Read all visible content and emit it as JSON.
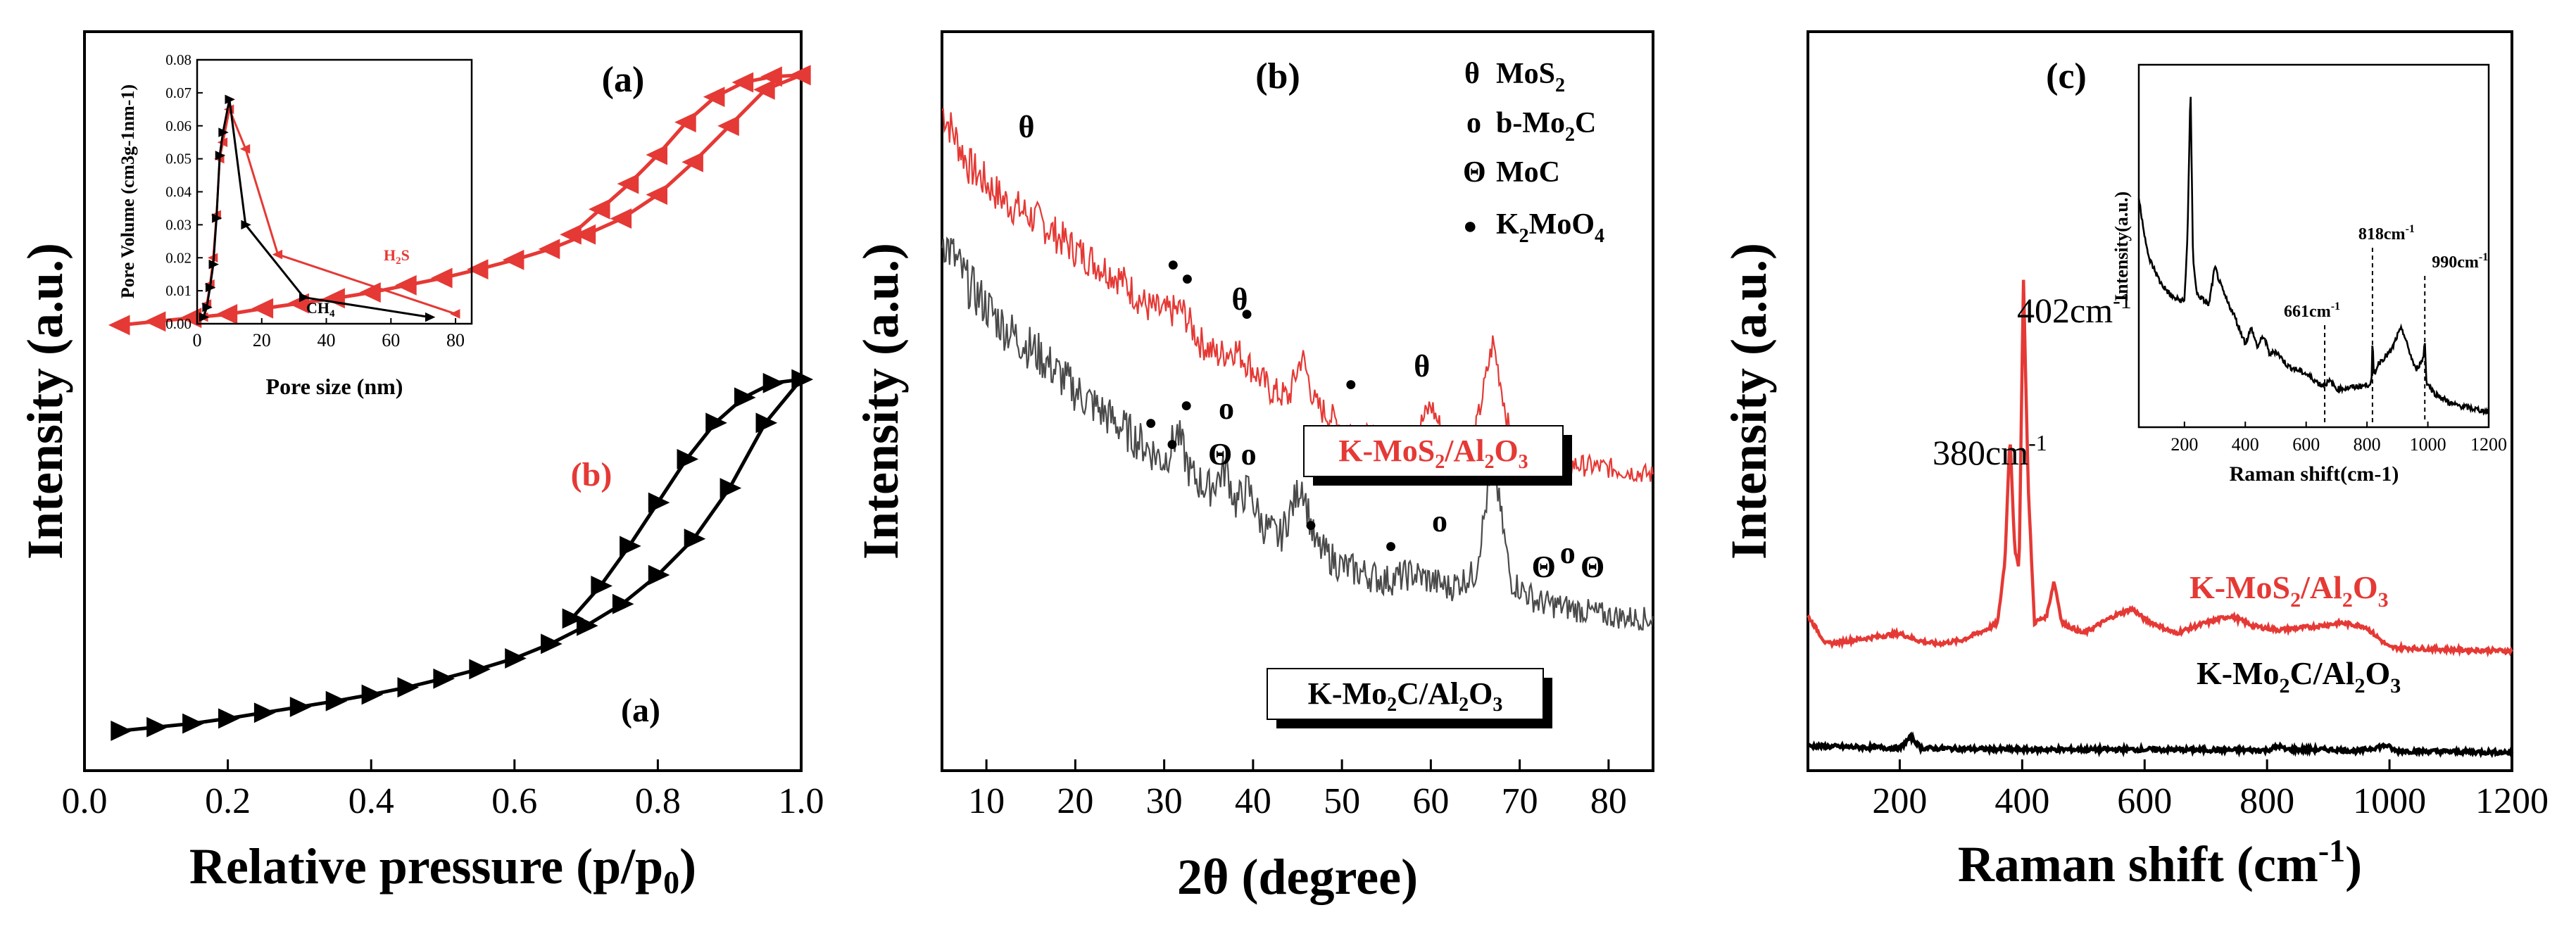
{
  "colors": {
    "red": "#e53935",
    "dark": "#4a4a4a",
    "black": "#000000",
    "axis": "#000000"
  },
  "chart_data": [
    {
      "type": "line",
      "panel_label": "(a)",
      "title": "",
      "xlabel_main": "Relative pressure (p/p",
      "xlabel_sub": "0",
      "xlabel_end": ")",
      "ylabel": "Intensity (a.u.)",
      "xlim": [
        0.0,
        1.0
      ],
      "xticks": [
        "0.0",
        "0.2",
        "0.4",
        "0.6",
        "0.8",
        "1.0"
      ],
      "yticks_shown": false,
      "series": [
        {
          "name": "(b)",
          "color": "red",
          "marker": "left-triangle",
          "adsorption": {
            "x": [
              0.05,
              0.1,
              0.15,
              0.2,
              0.25,
              0.3,
              0.35,
              0.4,
              0.45,
              0.5,
              0.55,
              0.6,
              0.65,
              0.7,
              0.75,
              0.8,
              0.85,
              0.9,
              0.95,
              1.0
            ],
            "y": [
              6.15,
              6.2,
              6.25,
              6.3,
              6.38,
              6.45,
              6.52,
              6.6,
              6.7,
              6.8,
              6.92,
              7.05,
              7.2,
              7.4,
              7.62,
              7.95,
              8.4,
              8.9,
              9.4,
              9.6
            ]
          },
          "desorption": {
            "x": [
              0.68,
              0.72,
              0.76,
              0.8,
              0.84,
              0.88,
              0.92,
              0.96,
              1.0
            ],
            "y": [
              7.4,
              7.75,
              8.1,
              8.5,
              8.95,
              9.3,
              9.5,
              9.58,
              9.6
            ]
          }
        },
        {
          "name": "(a)",
          "color": "black",
          "marker": "right-triangle",
          "adsorption": {
            "x": [
              0.05,
              0.1,
              0.15,
              0.2,
              0.25,
              0.3,
              0.35,
              0.4,
              0.45,
              0.5,
              0.55,
              0.6,
              0.65,
              0.7,
              0.75,
              0.8,
              0.85,
              0.9,
              0.95,
              1.0
            ],
            "y": [
              0.55,
              0.6,
              0.65,
              0.72,
              0.8,
              0.88,
              0.96,
              1.05,
              1.15,
              1.27,
              1.4,
              1.55,
              1.75,
              2.0,
              2.3,
              2.7,
              3.2,
              3.9,
              4.8,
              5.4
            ]
          },
          "desorption": {
            "x": [
              0.68,
              0.72,
              0.76,
              0.8,
              0.84,
              0.88,
              0.92,
              0.96,
              1.0
            ],
            "y": [
              2.1,
              2.55,
              3.1,
              3.7,
              4.3,
              4.8,
              5.15,
              5.35,
              5.4
            ]
          }
        }
      ],
      "inset": {
        "type": "line",
        "xlabel": "Pore size (nm)",
        "ylabel": "Pore Volume (cm3g-1nm-1)",
        "xlim": [
          0,
          85
        ],
        "ylim": [
          0,
          0.08
        ],
        "xticks": [
          "0",
          "20",
          "40",
          "60",
          "80"
        ],
        "yticks": [
          "0.00",
          "0.01",
          "0.02",
          "0.03",
          "0.04",
          "0.05",
          "0.06",
          "0.07",
          "0.08"
        ],
        "series": [
          {
            "name": "H2S",
            "name_main": "H",
            "name_sub": "2",
            "name_end": "S",
            "color": "red",
            "x": [
              2,
              3,
              4,
              5,
              6,
              7,
              8,
              10,
              15,
              25,
              80
            ],
            "y": [
              0.002,
              0.006,
              0.012,
              0.02,
              0.033,
              0.05,
              0.055,
              0.065,
              0.053,
              0.021,
              0.003
            ]
          },
          {
            "name": "CH4",
            "name_main": "CH",
            "name_sub": "4",
            "name_end": "",
            "color": "black",
            "x": [
              2,
              3,
              4,
              5,
              6,
              7,
              8,
              10,
              15,
              33,
              72
            ],
            "y": [
              0.002,
              0.005,
              0.011,
              0.018,
              0.032,
              0.051,
              0.058,
              0.068,
              0.03,
              0.008,
              0.002
            ]
          }
        ]
      }
    },
    {
      "type": "line",
      "panel_label": "(b)",
      "xlabel": "2θ (degree)",
      "ylabel": "Intensity (a.u.)",
      "xlim": [
        5,
        85
      ],
      "xticks": [
        "10",
        "20",
        "30",
        "40",
        "50",
        "60",
        "70",
        "80"
      ],
      "series": [
        {
          "name": "K-MoS2/Al2O3",
          "color": "red",
          "x": [
            5,
            8,
            12,
            16,
            20,
            25,
            28,
            30,
            32,
            34,
            36,
            38,
            40,
            42,
            44,
            45.5,
            47,
            50,
            55,
            58,
            60,
            62,
            65,
            67,
            69,
            72,
            76,
            80,
            85
          ],
          "y": [
            9.4,
            8.6,
            8.1,
            7.8,
            7.4,
            7.0,
            6.6,
            6.5,
            6.55,
            6.1,
            5.9,
            6.0,
            5.7,
            5.4,
            5.3,
            5.9,
            5.2,
            4.9,
            4.6,
            4.7,
            5.2,
            4.6,
            4.8,
            6.1,
            4.7,
            4.4,
            4.35,
            4.3,
            4.2
          ]
        },
        {
          "name": "K-Mo2C/Al2O3",
          "color": "dark",
          "x": [
            5,
            8,
            12,
            16,
            20,
            25,
            28,
            30,
            31.5,
            33,
            35,
            37,
            38,
            39.5,
            41,
            43,
            45.5,
            47,
            50,
            55,
            58,
            62,
            65,
            67,
            69,
            72,
            76,
            80,
            85
          ],
          "y": [
            7.6,
            6.9,
            6.3,
            5.9,
            5.4,
            4.9,
            4.6,
            4.4,
            4.8,
            4.2,
            4.0,
            4.3,
            3.8,
            4.0,
            3.5,
            3.3,
            4.1,
            3.2,
            2.9,
            2.7,
            2.8,
            2.6,
            2.8,
            4.4,
            2.7,
            2.4,
            2.3,
            2.2,
            2.15
          ]
        }
      ],
      "legend": [
        {
          "symbol": "θ",
          "label_main": "MoS",
          "label_sub": "2",
          "label_end": ""
        },
        {
          "symbol": "o",
          "label_main": "b-Mo",
          "label_sub": "2",
          "label_end": "C"
        },
        {
          "symbol": "Θ",
          "label_main": "MoC",
          "label_sub": "",
          "label_end": ""
        },
        {
          "symbol": "●",
          "label_main": "K",
          "label_sub": "2",
          "label_end": "MoO",
          "label_sub2": "4"
        }
      ],
      "annotations": [
        {
          "text": "θ",
          "x": 14.5,
          "y": 9.0
        },
        {
          "text": "θ",
          "x": 38.5,
          "y": 6.55
        },
        {
          "text": "θ",
          "x": 59,
          "y": 5.6
        },
        {
          "text": "●",
          "x": 31,
          "y": 7.1
        },
        {
          "text": "●",
          "x": 32.6,
          "y": 6.9
        },
        {
          "text": "●",
          "x": 39.3,
          "y": 6.4
        },
        {
          "text": "●",
          "x": 51,
          "y": 5.4
        },
        {
          "text": "●",
          "x": 28.5,
          "y": 4.85
        },
        {
          "text": "●",
          "x": 30.9,
          "y": 4.55
        },
        {
          "text": "●",
          "x": 32.5,
          "y": 5.1
        },
        {
          "text": "o",
          "x": 37.0,
          "y": 5.0
        },
        {
          "text": "Θ",
          "x": 36.3,
          "y": 4.35
        },
        {
          "text": "o",
          "x": 39.5,
          "y": 4.35
        },
        {
          "text": "●",
          "x": 46.5,
          "y": 3.4
        },
        {
          "text": "●",
          "x": 55.5,
          "y": 3.1
        },
        {
          "text": "o",
          "x": 61,
          "y": 3.4
        },
        {
          "text": "Θ",
          "x": 72.7,
          "y": 2.75
        },
        {
          "text": "o",
          "x": 75.4,
          "y": 2.95
        },
        {
          "text": "Θ",
          "x": 78.2,
          "y": 2.75
        }
      ],
      "labels": [
        {
          "main": "K-MoS",
          "sub": "2",
          "mid": "/Al",
          "sub2": "2",
          "mid2": "O",
          "sub3": "3",
          "color": "red"
        },
        {
          "main": "K-Mo",
          "sub": "2",
          "mid": "C/Al",
          "sub2": "2",
          "mid2": "O",
          "sub3": "3",
          "color": "black"
        }
      ]
    },
    {
      "type": "line",
      "panel_label": "(c)",
      "xlabel_main": "Raman shift (cm",
      "xlabel_sup": "-1",
      "xlabel_end": ")",
      "ylabel": "Intensity (a.u.)",
      "xlim": [
        50,
        1200
      ],
      "xticks": [
        "200",
        "400",
        "600",
        "800",
        "1000",
        "1200"
      ],
      "series": [
        {
          "name": "K-MoS2/Al2O3",
          "color": "red",
          "x": [
            50,
            80,
            120,
            160,
            200,
            230,
            260,
            300,
            340,
            360,
            372,
            380,
            388,
            395,
            402,
            410,
            420,
            440,
            452,
            465,
            500,
            550,
            580,
            600,
            650,
            700,
            740,
            780,
            820,
            880,
            920,
            960,
            1000,
            1100,
            1200
          ],
          "y": [
            2.2,
            1.8,
            1.85,
            1.9,
            1.95,
            1.85,
            1.8,
            1.85,
            2.0,
            2.1,
            3.0,
            4.8,
            3.1,
            2.9,
            7.0,
            4.0,
            2.1,
            2.2,
            2.7,
            2.1,
            1.95,
            2.2,
            2.3,
            2.15,
            1.95,
            2.1,
            2.2,
            2.05,
            2.0,
            2.05,
            2.1,
            2.05,
            1.75,
            1.72,
            1.7
          ]
        },
        {
          "name": "K-Mo2C/Al2O3",
          "color": "black",
          "x": [
            50,
            150,
            200,
            218,
            235,
            300,
            400,
            600,
            800,
            820,
            830,
            900,
            950,
            995,
            1010,
            1100,
            1200
          ],
          "y": [
            0.35,
            0.33,
            0.32,
            0.48,
            0.32,
            0.31,
            0.3,
            0.3,
            0.29,
            0.35,
            0.3,
            0.3,
            0.28,
            0.36,
            0.28,
            0.27,
            0.26
          ]
        }
      ],
      "peak_labels": [
        {
          "main": "402cm",
          "sup": "-1",
          "x": 402,
          "y": 7.3
        },
        {
          "main": "380cm",
          "sup": "-1",
          "x": 380,
          "y": 5.4
        }
      ],
      "labels": [
        {
          "main": "K-MoS",
          "sub": "2",
          "mid": "/Al",
          "sub2": "2",
          "mid2": "O",
          "sub3": "3",
          "color": "red"
        },
        {
          "main": "K-Mo",
          "sub": "2",
          "mid": "C/Al",
          "sub2": "2",
          "mid2": "O",
          "sub3": "3",
          "color": "black"
        }
      ],
      "inset": {
        "type": "line",
        "xlabel": "Raman shift(cm-1)",
        "ylabel": "Intensity(a.u.)",
        "xlim": [
          50,
          1200
        ],
        "xticks": [
          "200",
          "400",
          "600",
          "800",
          "1000",
          "1200"
        ],
        "series": [
          {
            "name": "spectrum",
            "color": "black",
            "x": [
              50,
              80,
              120,
              160,
              200,
              210,
              220,
              228,
              240,
              280,
              300,
              320,
              340,
              360,
              380,
              400,
              420,
              440,
              460,
              480,
              500,
              540,
              600,
              650,
              680,
              700,
              760,
              800,
              815,
              818,
              822,
              840,
              880,
              900,
              915,
              930,
              960,
              985,
              990,
              995,
              1020,
              1080,
              1140,
              1200
            ],
            "y": [
              6.0,
              4.5,
              3.8,
              3.4,
              3.3,
              5.0,
              8.9,
              4.5,
              3.5,
              3.2,
              4.2,
              3.7,
              3.3,
              3.0,
              2.6,
              2.2,
              2.6,
              2.1,
              2.4,
              1.9,
              2.0,
              1.6,
              1.4,
              1.1,
              1.2,
              1.0,
              1.05,
              1.1,
              1.2,
              2.3,
              1.4,
              1.7,
              2.0,
              2.4,
              2.6,
              2.2,
              1.5,
              1.8,
              2.3,
              1.2,
              0.9,
              0.6,
              0.5,
              0.4
            ]
          }
        ],
        "peak_labels": [
          {
            "main": "661cm",
            "sup": "-1",
            "x": 661
          },
          {
            "main": "818cm",
            "sup": "-1",
            "x": 818
          },
          {
            "main": "990cm",
            "sup": "-1",
            "x": 990
          }
        ]
      }
    }
  ]
}
